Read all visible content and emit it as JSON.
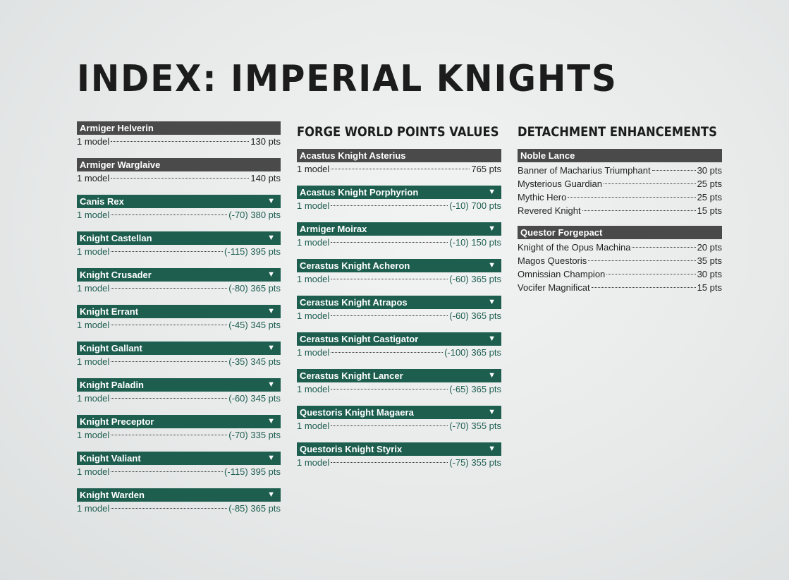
{
  "title": "INDEX: IMPERIAL KNIGHTS",
  "left_units": [
    {
      "name": "Armiger Helverin",
      "style": "gray",
      "arrow": "",
      "model": "1 model",
      "pts": "130 pts"
    },
    {
      "name": "Armiger Warglaive",
      "style": "gray",
      "arrow": "",
      "model": "1 model",
      "pts": "140 pts"
    },
    {
      "name": "Canis Rex",
      "style": "green",
      "arrow": "▼",
      "model": "1 model",
      "pts": "(-70) 380 pts"
    },
    {
      "name": "Knight Castellan",
      "style": "green",
      "arrow": "▼",
      "model": "1 model",
      "pts": "(-115) 395 pts"
    },
    {
      "name": "Knight Crusader",
      "style": "green",
      "arrow": "▼",
      "model": "1 model",
      "pts": "(-80) 365 pts"
    },
    {
      "name": "Knight Errant",
      "style": "green",
      "arrow": "▼",
      "model": "1 model",
      "pts": "(-45) 345 pts"
    },
    {
      "name": "Knight Gallant",
      "style": "green",
      "arrow": "▼",
      "model": "1 model",
      "pts": "(-35) 345 pts"
    },
    {
      "name": "Knight Paladin",
      "style": "green",
      "arrow": "▼",
      "model": "1 model",
      "pts": "(-60) 345 pts"
    },
    {
      "name": "Knight Preceptor",
      "style": "green",
      "arrow": "▼",
      "model": "1 model",
      "pts": "(-70) 335 pts"
    },
    {
      "name": "Knight Valiant",
      "style": "green",
      "arrow": "▼",
      "model": "1 model",
      "pts": "(-115) 395 pts"
    },
    {
      "name": "Knight Warden",
      "style": "green",
      "arrow": "▼",
      "model": "1 model",
      "pts": "(-85) 365 pts"
    }
  ],
  "forge_world": {
    "heading": "FORGE WORLD POINTS VALUES",
    "units": [
      {
        "name": "Acastus Knight Asterius",
        "style": "gray",
        "arrow": "",
        "model": "1 model",
        "pts": "765 pts"
      },
      {
        "name": "Acastus Knight Porphyrion",
        "style": "green",
        "arrow": "▼",
        "model": "1 model",
        "pts": "(-10) 700 pts"
      },
      {
        "name": "Armiger Moirax",
        "style": "green",
        "arrow": "▼",
        "model": "1 model",
        "pts": "(-10) 150 pts"
      },
      {
        "name": "Cerastus Knight Acheron",
        "style": "green",
        "arrow": "▼",
        "model": "1 model",
        "pts": "(-60) 365 pts"
      },
      {
        "name": "Cerastus Knight Atrapos",
        "style": "green",
        "arrow": "▼",
        "model": "1 model",
        "pts": "(-60) 365 pts"
      },
      {
        "name": "Cerastus Knight Castigator",
        "style": "green",
        "arrow": "▼",
        "model": "1 model",
        "pts": "(-100) 365 pts"
      },
      {
        "name": "Cerastus Knight Lancer",
        "style": "green",
        "arrow": "▼",
        "model": "1 model",
        "pts": "(-65) 365 pts"
      },
      {
        "name": "Questoris Knight Magaera",
        "style": "green",
        "arrow": "▼",
        "model": "1 model",
        "pts": "(-70) 355 pts"
      },
      {
        "name": "Questoris Knight Styrix",
        "style": "green",
        "arrow": "▼",
        "model": "1 model",
        "pts": "(-75) 355 pts"
      }
    ]
  },
  "enhancements": {
    "heading": "DETACHMENT ENHANCEMENTS",
    "groups": [
      {
        "name": "Noble Lance",
        "items": [
          {
            "name": "Banner of Macharius Triumphant",
            "pts": "30 pts"
          },
          {
            "name": "Mysterious Guardian",
            "pts": "25 pts"
          },
          {
            "name": "Mythic Hero",
            "pts": "25 pts"
          },
          {
            "name": "Revered Knight",
            "pts": "15 pts"
          }
        ]
      },
      {
        "name": "Questor Forgepact",
        "items": [
          {
            "name": "Knight of the Opus Machina",
            "pts": "20 pts"
          },
          {
            "name": "Magos Questoris",
            "pts": "35 pts"
          },
          {
            "name": "Omnissian Champion",
            "pts": "30 pts"
          },
          {
            "name": "Vocifer Magnificat",
            "pts": "15 pts"
          }
        ]
      }
    ]
  },
  "colors": {
    "green_header": "#1d5e4f",
    "gray_header": "#4a4a4a",
    "green_text": "#1d5e4f"
  }
}
